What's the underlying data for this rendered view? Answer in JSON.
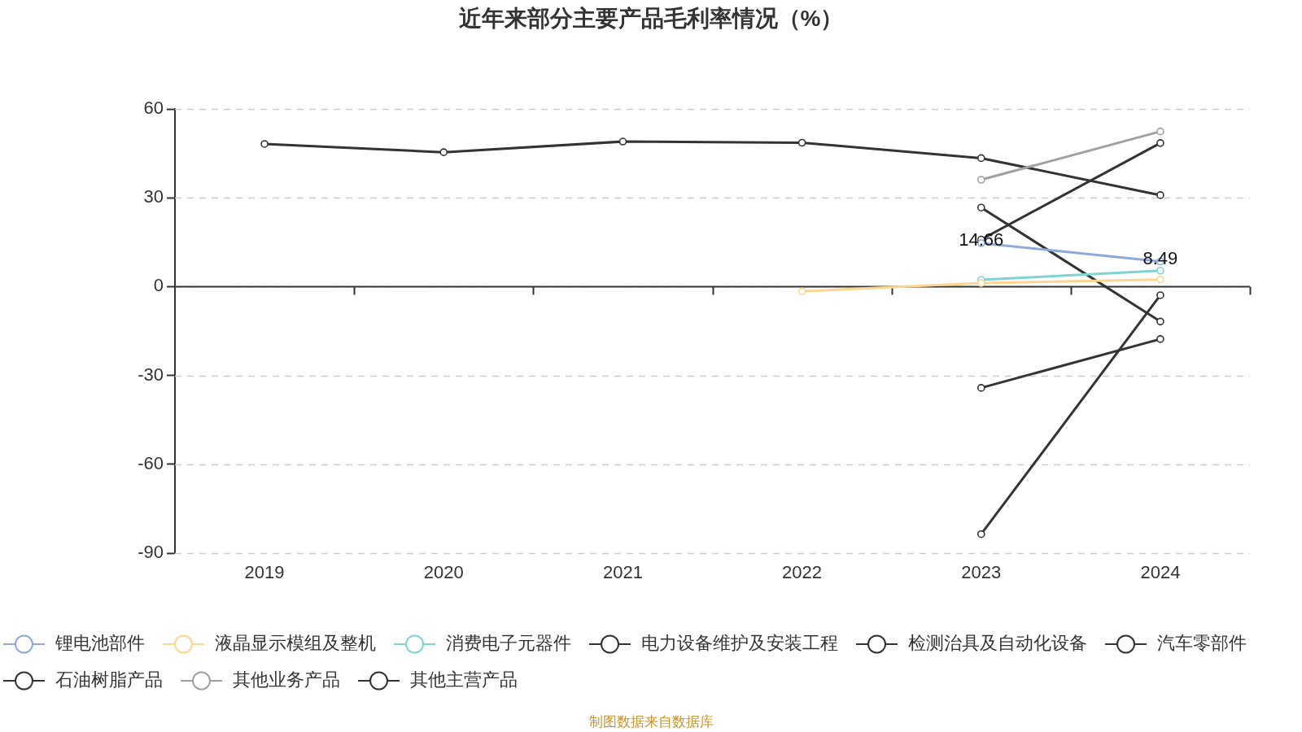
{
  "chart_data": {
    "type": "line",
    "title": "近年来部分主要产品毛利率情况（%）",
    "categories": [
      "2019",
      "2020",
      "2021",
      "2022",
      "2023",
      "2024"
    ],
    "series": [
      {
        "name": "锂电池部件",
        "color": "#8eaadb",
        "values": [
          null,
          null,
          null,
          null,
          14.66,
          8.49
        ],
        "value_labels": [
          null,
          null,
          null,
          null,
          "14.66",
          "8.49"
        ]
      },
      {
        "name": "液晶显示模组及整机",
        "color": "#fed58f",
        "values": [
          null,
          null,
          null,
          -1.6,
          1.2,
          2.4
        ]
      },
      {
        "name": "消费电子元器件",
        "color": "#7fd3d3",
        "values": [
          null,
          null,
          null,
          null,
          2.3,
          5.4
        ]
      },
      {
        "name": "电力设备维护及安装工程",
        "color": "#333333",
        "values": [
          null,
          null,
          null,
          null,
          15.9,
          48.5
        ]
      },
      {
        "name": "检测治具及自动化设备",
        "color": "#333333",
        "values": [
          null,
          null,
          null,
          null,
          26.7,
          -11.8
        ]
      },
      {
        "name": "汽车零部件",
        "color": "#333333",
        "values": [
          null,
          null,
          null,
          null,
          -34.2,
          -17.7
        ]
      },
      {
        "name": "石油树脂产品",
        "color": "#333333",
        "values": [
          null,
          null,
          null,
          null,
          -83.6,
          -2.9
        ]
      },
      {
        "name": "其他业务产品",
        "color": "#a0a0a0",
        "values": [
          null,
          null,
          null,
          null,
          36.1,
          52.4
        ]
      },
      {
        "name": "其他主营产品",
        "color": "#333333",
        "values": [
          48.2,
          45.4,
          49.0,
          48.6,
          43.4,
          30.9
        ]
      }
    ],
    "ylim": [
      -90,
      60
    ],
    "yticks": [
      -90,
      -60,
      -30,
      0,
      30,
      60
    ],
    "grid": "y",
    "legend": "bottom",
    "marker": "circle",
    "annotations": [
      "制图数据来自数据库"
    ]
  }
}
